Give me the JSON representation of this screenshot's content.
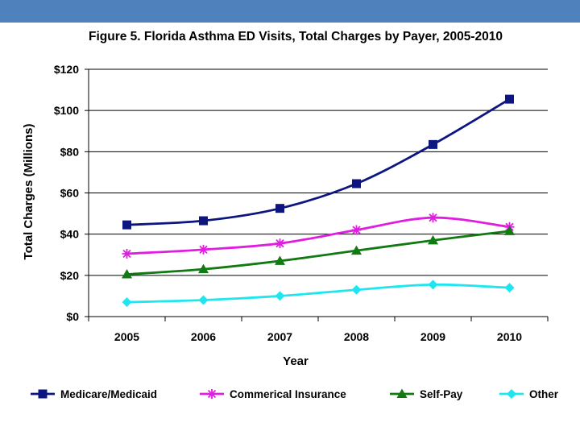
{
  "colors": {
    "top_bar": "#4f81bd",
    "medicare": "#0d1580",
    "commercial": "#e01ee0",
    "selfpay": "#127a12",
    "other": "#1ee6f0"
  },
  "chart_data": {
    "type": "line",
    "title": "Figure 5. Florida Asthma ED Visits, Total Charges by Payer, 2005-2010",
    "xlabel": "Year",
    "ylabel": "Total Charges (Millions)",
    "ylim": [
      0,
      120
    ],
    "yticks": [
      0,
      20,
      40,
      60,
      80,
      100,
      120
    ],
    "ytick_labels": [
      "$0",
      "$20",
      "$40",
      "$60",
      "$80",
      "$100",
      "$120"
    ],
    "categories": [
      "2005",
      "2006",
      "2007",
      "2008",
      "2009",
      "2010"
    ],
    "grid": "horizontal",
    "legend_position": "bottom",
    "series": [
      {
        "key": "medicare",
        "name": "Medicare/Medicaid",
        "marker": "square",
        "values": [
          44.5,
          46.5,
          52.5,
          64.5,
          83.5,
          105.5
        ]
      },
      {
        "key": "commercial",
        "name": "Commerical Insurance",
        "marker": "asterisk",
        "values": [
          30.5,
          32.5,
          35.5,
          42,
          48,
          43.5
        ]
      },
      {
        "key": "selfpay",
        "name": "Self-Pay",
        "marker": "triangle",
        "values": [
          20.5,
          23,
          27,
          32,
          37,
          41.5
        ]
      },
      {
        "key": "other",
        "name": "Other",
        "marker": "diamond",
        "values": [
          7,
          8,
          10,
          13,
          15.5,
          14
        ]
      }
    ]
  }
}
